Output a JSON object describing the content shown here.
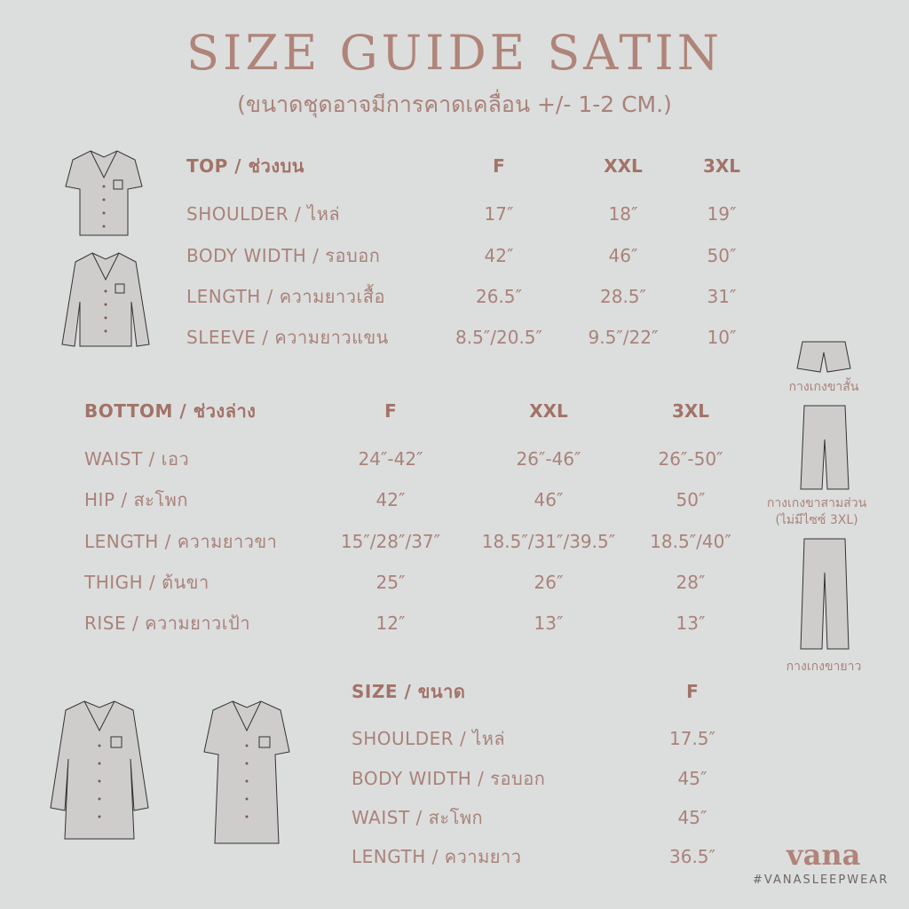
{
  "title": "SIZE GUIDE SATIN",
  "subtitle": "(ขนาดชุดอาจมีการคาดเคลื่อน +/- 1-2 CM.)",
  "top_table": {
    "header": [
      "TOP / ช่วงบน",
      "F",
      "XXL",
      "3XL"
    ],
    "rows": [
      [
        "SHOULDER / ไหล่",
        "17″",
        "18″",
        "19″"
      ],
      [
        "BODY WIDTH / รอบอก",
        "42″",
        "46″",
        "50″"
      ],
      [
        "LENGTH / ความยาวเสื้อ",
        "26.5″",
        "28.5″",
        "31″"
      ],
      [
        "SLEEVE / ความยาวแขน",
        "8.5″/20.5″",
        "9.5″/22″",
        "10″"
      ]
    ]
  },
  "bottom_table": {
    "header": [
      "BOTTOM / ช่วงล่าง",
      "F",
      "XXL",
      "3XL"
    ],
    "rows": [
      [
        "WAIST / เอว",
        "24″-42″",
        "26″-46″",
        "26″-50″"
      ],
      [
        "HIP / สะโพก",
        "42″",
        "46″",
        "50″"
      ],
      [
        "LENGTH / ความยาวขา",
        "15″/28″/37″",
        "18.5″/31″/39.5″",
        "18.5″/40″"
      ],
      [
        "THIGH / ต้นขา",
        "25″",
        "26″",
        "28″"
      ],
      [
        "RISE / ความยาวเป้า",
        "12″",
        "13″",
        "13″"
      ]
    ]
  },
  "dress_table": {
    "header": [
      "SIZE / ขนาด",
      "F"
    ],
    "rows": [
      [
        "SHOULDER / ไหล่",
        "17.5″"
      ],
      [
        "BODY WIDTH / รอบอก",
        "45″"
      ],
      [
        "WAIST / สะโพก",
        "45″"
      ],
      [
        "LENGTH / ความยาว",
        "36.5″"
      ]
    ]
  },
  "pants_captions": {
    "shorts": "กางเกงขาสั้น",
    "three_quarter": "กางเกงขาสามส่วน",
    "three_quarter_note": "(ไม่มีไซซ์ 3XL)",
    "long": "กางเกงขายาว"
  },
  "brand": {
    "logo": "vana",
    "hashtag": "#VANASLEEPWEAR"
  },
  "colors": {
    "background": "#dcdedd",
    "text": "#a9827a",
    "header": "#a27368"
  }
}
